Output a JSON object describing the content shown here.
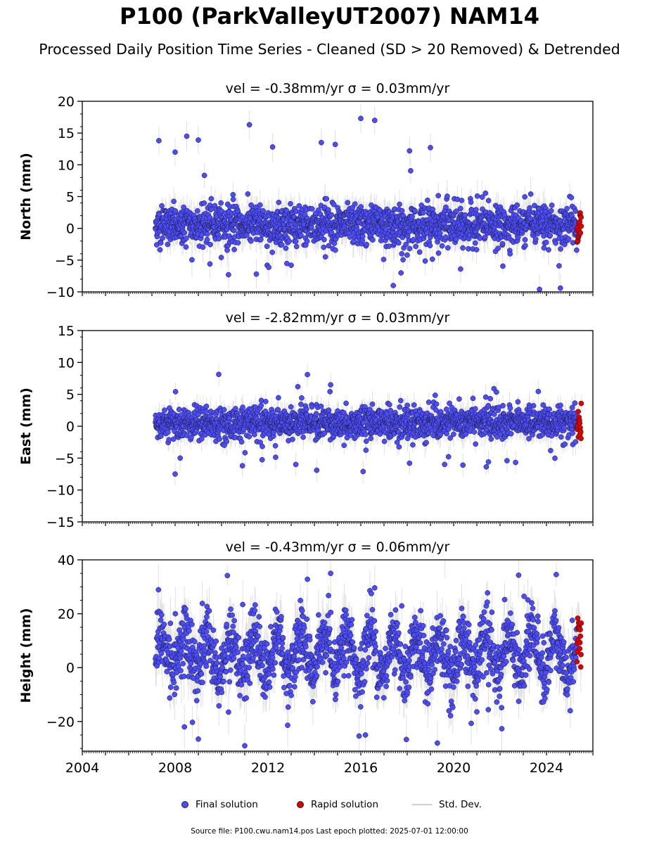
{
  "title": "P100 (ParkValleyUT2007) NAM14",
  "subtitle": "Processed Daily Position Time Series - Cleaned (SD > 20 Removed) & Detrended",
  "legend": {
    "final_label": "Final solution",
    "rapid_label": "Rapid solution",
    "sd_label": "Std. Dev."
  },
  "footer": "Source file: P100.cwu.nam14.pos  Last epoch plotted: 2025-07-01 12:00:00",
  "colors": {
    "final": "#4b4bff",
    "rapid": "#e00000",
    "stddev": "#bdbdbd"
  },
  "chart_data": [
    {
      "type": "scatter",
      "panel": "north",
      "title": "vel = -0.38mm/yr   σ = 0.03mm/yr",
      "ylabel": "North (mm)",
      "ylim": [
        -10,
        20
      ],
      "yticks": [
        -10,
        -5,
        0,
        5,
        10,
        15,
        20
      ],
      "xlim": [
        2004,
        2026
      ],
      "data_start": 2007.15,
      "data_end": 2025.5,
      "rapid_start": 2025.3,
      "noise_sd": 1.5,
      "outliers": [
        [
          2007.3,
          13.8
        ],
        [
          2008.0,
          12.0
        ],
        [
          2008.5,
          14.5
        ],
        [
          2009.0,
          13.9
        ],
        [
          2011.2,
          16.3
        ],
        [
          2012.2,
          12.8
        ],
        [
          2014.3,
          13.5
        ],
        [
          2014.9,
          13.2
        ],
        [
          2016.0,
          17.3
        ],
        [
          2016.6,
          17.0
        ],
        [
          2018.1,
          12.2
        ],
        [
          2019.0,
          12.7
        ],
        [
          2009.5,
          -5.6
        ],
        [
          2010.3,
          -7.3
        ],
        [
          2011.5,
          -7.2
        ],
        [
          2017.4,
          -9.0
        ],
        [
          2023.7,
          -9.6
        ],
        [
          2024.6,
          -9.4
        ],
        [
          2020.3,
          -6.4
        ],
        [
          2013.0,
          -5.8
        ]
      ]
    },
    {
      "type": "scatter",
      "panel": "east",
      "title": "vel = -2.82mm/yr   σ = 0.03mm/yr",
      "ylabel": "East (mm)",
      "ylim": [
        -15,
        15
      ],
      "yticks": [
        -15,
        -10,
        -5,
        0,
        5,
        10,
        15
      ],
      "xlim": [
        2004,
        2026
      ],
      "data_start": 2007.15,
      "data_end": 2025.5,
      "rapid_start": 2025.3,
      "noise_sd": 1.2,
      "outliers": [
        [
          2013.7,
          8.1
        ],
        [
          2014.7,
          6.5
        ],
        [
          2008.0,
          -7.5
        ],
        [
          2016.1,
          -7.1
        ],
        [
          2010.9,
          -6.2
        ],
        [
          2013.2,
          -6.0
        ],
        [
          2018.1,
          -5.8
        ],
        [
          2020.4,
          -6.1
        ],
        [
          2014.1,
          -6.9
        ],
        [
          2021.5,
          -5.6
        ],
        [
          2022.3,
          -5.4
        ]
      ]
    },
    {
      "type": "scatter",
      "panel": "height",
      "title": "vel = -0.43mm/yr   σ = 0.06mm/yr",
      "ylabel": "Height (mm)",
      "ylim": [
        -31,
        40
      ],
      "yticks": [
        -20,
        0,
        20,
        40
      ],
      "xlim": [
        2004,
        2026
      ],
      "xticks": [
        2004,
        2008,
        2012,
        2016,
        2020,
        2024
      ],
      "data_start": 2007.15,
      "data_end": 2025.5,
      "rapid_start": 2025.3,
      "noise_sd": 5.5,
      "seasonal_amplitude": 7,
      "outliers": [
        [
          2013.7,
          32.8
        ],
        [
          2014.7,
          35.0
        ],
        [
          2016.6,
          29.6
        ],
        [
          2022.8,
          34.3
        ],
        [
          2011.0,
          -29.0
        ],
        [
          2019.3,
          -28.0
        ],
        [
          2009.0,
          -26.5
        ],
        [
          2016.2,
          -25.0
        ],
        [
          2008.4,
          -22.0
        ],
        [
          2010.3,
          -16.5
        ],
        [
          2021.0,
          -16.4
        ]
      ]
    }
  ]
}
